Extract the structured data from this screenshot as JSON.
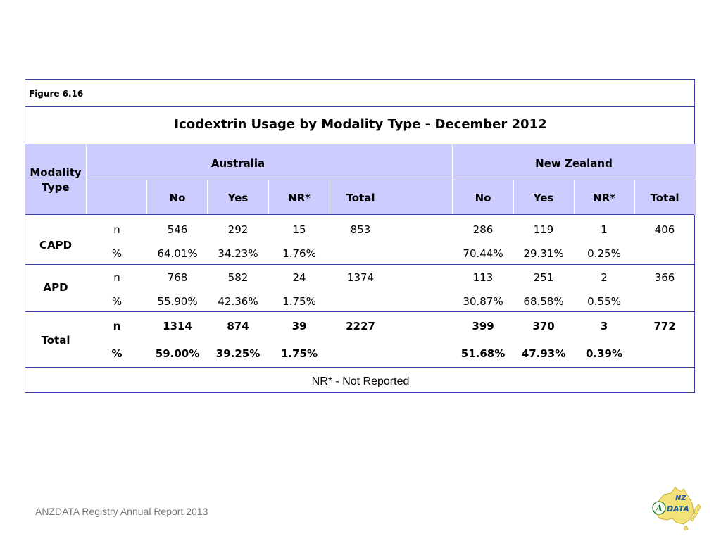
{
  "figure_label": "Figure 6.16",
  "title": "Icodextrin Usage by Modality Type - December 2012",
  "row_header": "Modality\nType",
  "groups": [
    "Australia",
    "New Zealand"
  ],
  "columns": [
    "No",
    "Yes",
    "NR*",
    "Total"
  ],
  "rows": [
    {
      "label": "CAPD",
      "n": {
        "unit": "n",
        "values": [
          "546",
          "292",
          "15",
          "853",
          "286",
          "119",
          "1",
          "406"
        ]
      },
      "pct": {
        "unit": "%",
        "values": [
          "64.01%",
          "34.23%",
          "1.76%",
          "",
          "70.44%",
          "29.31%",
          "0.25%",
          ""
        ]
      }
    },
    {
      "label": "APD",
      "n": {
        "unit": "n",
        "values": [
          "768",
          "582",
          "24",
          "1374",
          "113",
          "251",
          "2",
          "366"
        ]
      },
      "pct": {
        "unit": "%",
        "values": [
          "55.90%",
          "42.36%",
          "1.75%",
          "",
          "30.87%",
          "68.58%",
          "0.55%",
          ""
        ]
      }
    },
    {
      "label": "Total",
      "n": {
        "unit": "n",
        "values": [
          "1314",
          "874",
          "39",
          "2227",
          "399",
          "370",
          "3",
          "772"
        ]
      },
      "pct": {
        "unit": "%",
        "values": [
          "59.00%",
          "39.25%",
          "1.75%",
          "",
          "51.68%",
          "47.93%",
          "0.39%",
          ""
        ]
      }
    }
  ],
  "footnote": "NR* - Not Reported",
  "footer_text": "ANZDATA Registry Annual Report 2013",
  "logo_text": "ANZDATA",
  "colors": {
    "header_fill": "#ccccff",
    "border": "#3b3fa8"
  },
  "logo_icon": "australia-nz-map-logo"
}
